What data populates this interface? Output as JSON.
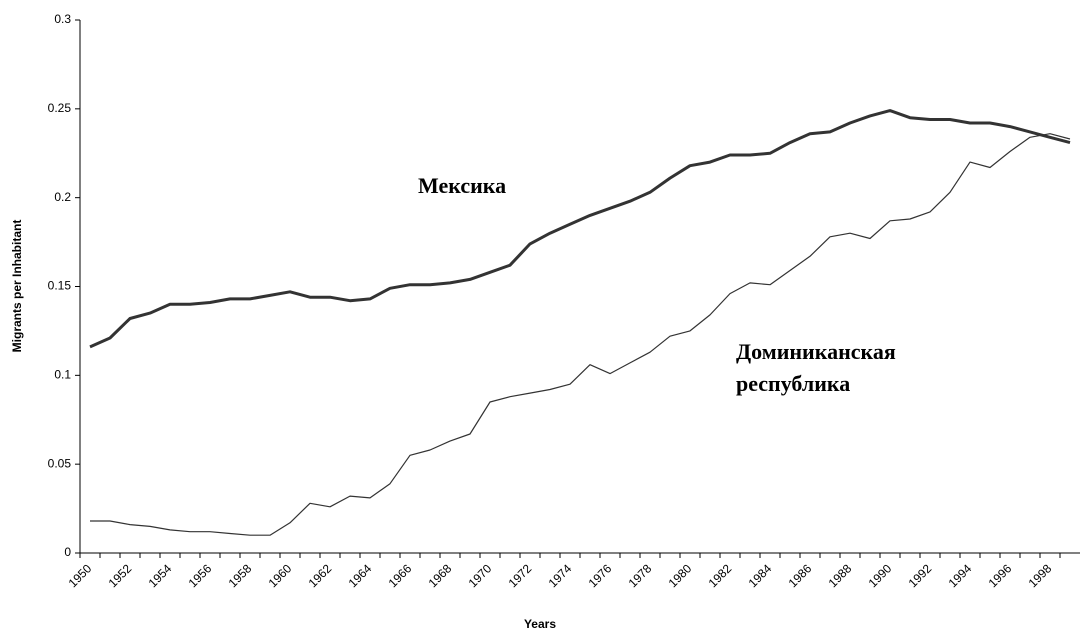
{
  "chart_data": {
    "type": "line",
    "x_label": "Years",
    "y_label": "Migrants per Inhabitant",
    "categories": [
      "1950",
      null,
      "1952",
      null,
      "1954",
      null,
      "1956",
      null,
      "1958",
      null,
      "1960",
      null,
      "1962",
      null,
      "1964",
      null,
      "1966",
      null,
      "1968",
      null,
      "1970",
      null,
      "1972",
      null,
      "1974",
      null,
      "1976",
      null,
      "1978",
      null,
      "1980",
      null,
      "1982",
      null,
      "1984",
      null,
      "1986",
      null,
      "1988",
      null,
      "1990",
      null,
      "1992",
      null,
      "1994",
      null,
      "1996",
      null,
      "1998",
      null
    ],
    "series": [
      {
        "name": "Мексика",
        "color": "#333333",
        "width": 3,
        "values": [
          0.116,
          0.121,
          0.132,
          0.135,
          0.14,
          0.14,
          0.141,
          0.143,
          0.143,
          0.145,
          0.147,
          0.144,
          0.144,
          0.142,
          0.143,
          0.149,
          0.151,
          0.151,
          0.152,
          0.154,
          0.158,
          0.162,
          0.174,
          0.18,
          0.185,
          0.19,
          0.194,
          0.198,
          0.203,
          0.211,
          0.218,
          0.22,
          0.224,
          0.224,
          0.225,
          0.231,
          0.236,
          0.237,
          0.242,
          0.246,
          0.249,
          0.245,
          0.244,
          0.244,
          0.242,
          0.242,
          0.24,
          0.237,
          0.234,
          0.231
        ]
      },
      {
        "name": "Доминиканская республика",
        "color": "#333333",
        "width": 1.2,
        "values": [
          0.018,
          0.018,
          0.016,
          0.015,
          0.013,
          0.012,
          0.012,
          0.011,
          0.01,
          0.01,
          0.017,
          0.028,
          0.026,
          0.032,
          0.031,
          0.039,
          0.055,
          0.058,
          0.063,
          0.067,
          0.085,
          0.088,
          0.09,
          0.092,
          0.095,
          0.106,
          0.101,
          0.107,
          0.113,
          0.122,
          0.125,
          0.134,
          0.146,
          0.152,
          0.151,
          0.159,
          0.167,
          0.178,
          0.18,
          0.177,
          0.187,
          0.188,
          0.192,
          0.203,
          0.22,
          0.217,
          0.226,
          0.234,
          0.236,
          0.233
        ]
      }
    ],
    "ylim": [
      0,
      0.3
    ],
    "yticks": [
      0,
      0.05,
      0.1,
      0.15,
      0.2,
      0.25,
      0.3
    ]
  }
}
